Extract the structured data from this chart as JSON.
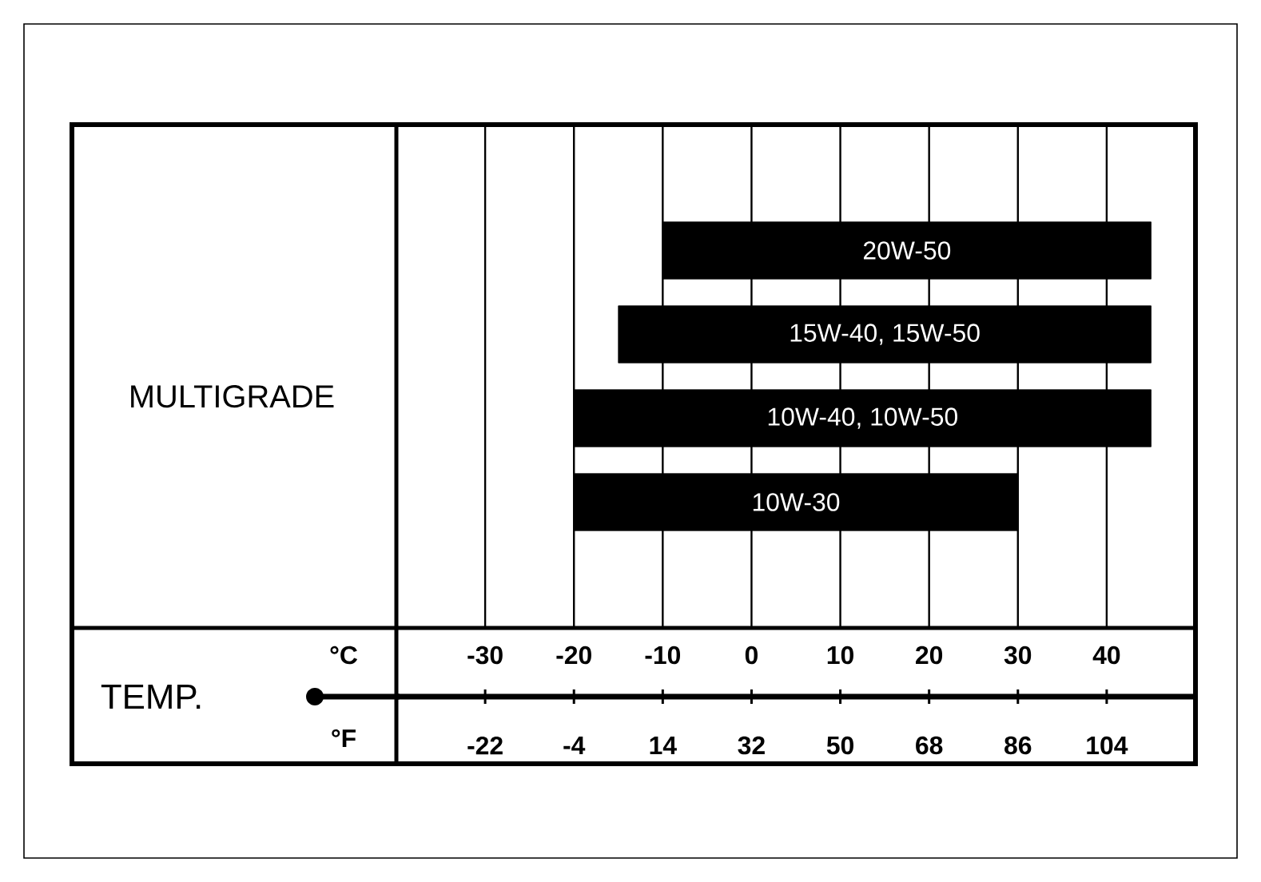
{
  "chart_data": {
    "type": "bar",
    "orientation": "horizontal",
    "ylabel": "MULTIGRADE",
    "xlabel": "°C",
    "x2label": "°F",
    "annotations": [
      "TEMP."
    ],
    "categories": [
      "20W-50",
      "15W-40, 15W-50",
      "10W-40, 10W-50",
      "10W-30"
    ],
    "base": [
      -10,
      -15,
      -20,
      -20
    ],
    "values": [
      55,
      60,
      65,
      50
    ],
    "color": "#000000",
    "xlim": [
      -40,
      50
    ],
    "xticks": [
      -30,
      -20,
      -10,
      0,
      10,
      20,
      30,
      40
    ],
    "x2lim": [
      -40,
      122
    ],
    "x2ticks": [
      -22,
      -4,
      14,
      32,
      50,
      68,
      86,
      104
    ],
    "grid": "x"
  }
}
